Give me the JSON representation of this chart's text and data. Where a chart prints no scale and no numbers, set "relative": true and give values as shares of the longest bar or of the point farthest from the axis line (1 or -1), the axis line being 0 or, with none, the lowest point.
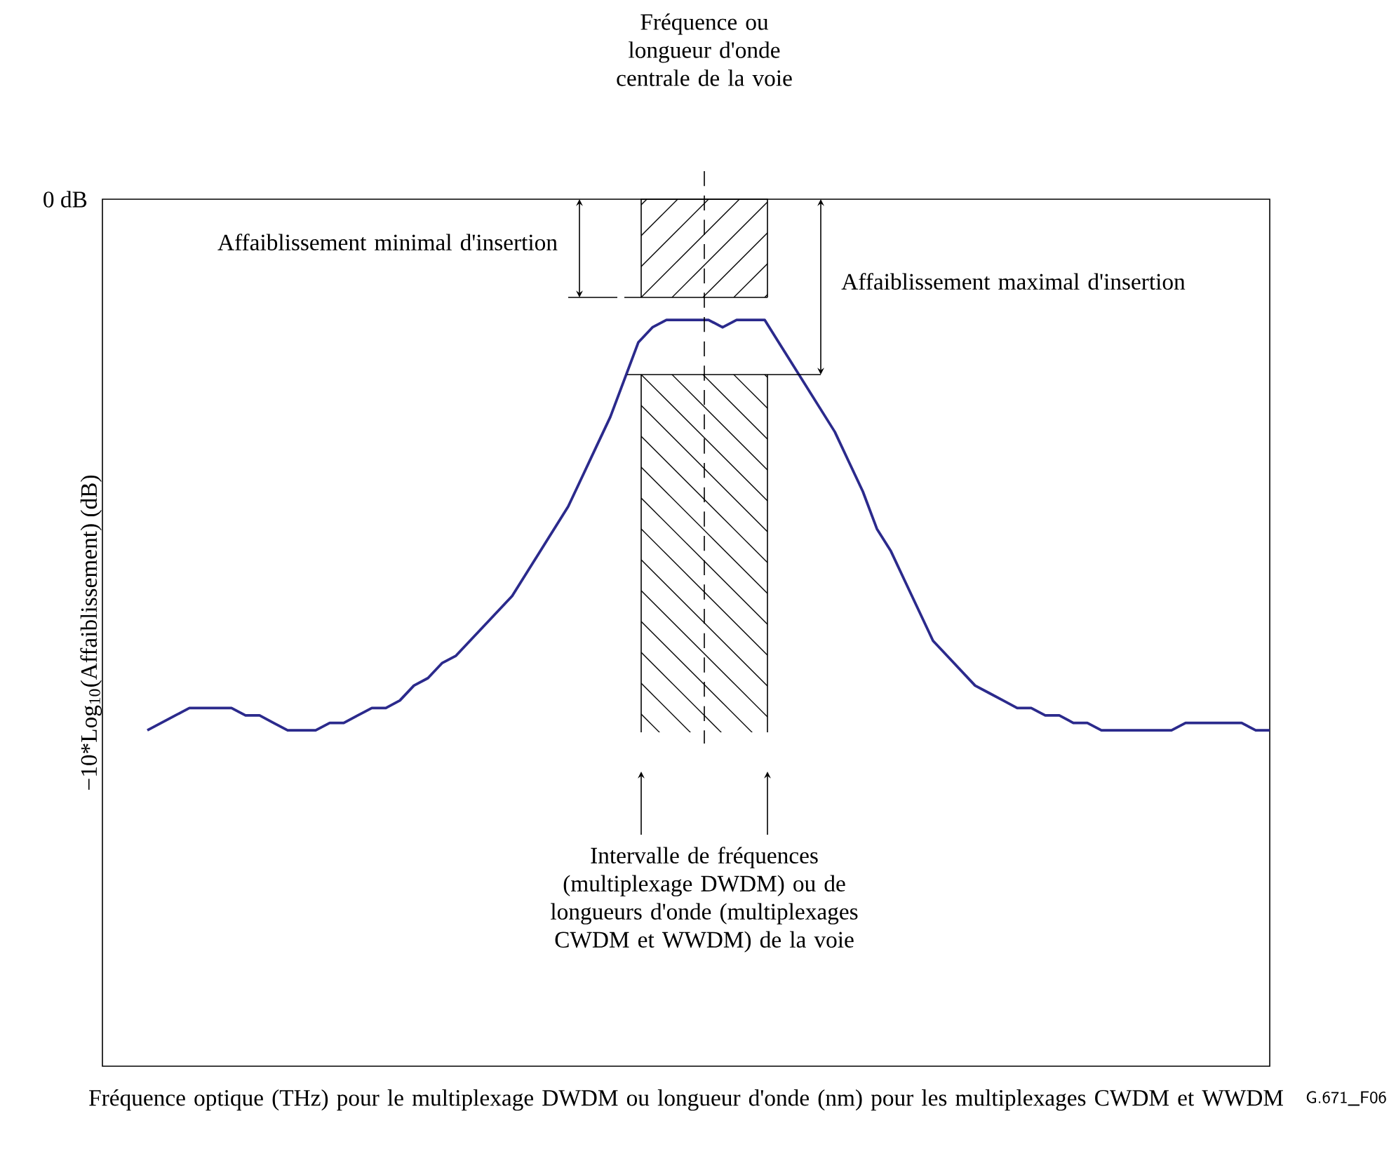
{
  "chart_data": {
    "type": "line",
    "relative": true,
    "categories": [
      null,
      null,
      null,
      null,
      null,
      null,
      null,
      null,
      null,
      null,
      null,
      null,
      null,
      null,
      null,
      null,
      null,
      null,
      null,
      null,
      null,
      null,
      null,
      null,
      null,
      null,
      null,
      null,
      null,
      null,
      null,
      null,
      null,
      null,
      null,
      null,
      null,
      null,
      null,
      null,
      null,
      null,
      null,
      null,
      null,
      null,
      null,
      null,
      null,
      null,
      null,
      null,
      null,
      null,
      null,
      null,
      null,
      null,
      null,
      null,
      null,
      null,
      null,
      null,
      null,
      null,
      null,
      null,
      null,
      null,
      null,
      null,
      null,
      null,
      null,
      null,
      null,
      null,
      null,
      null,
      null
    ],
    "series": [
      {
        "color": "#2b2a8c",
        "values": [
          0.45,
          0.46,
          0.47,
          0.48,
          0.48,
          0.48,
          0.48,
          0.47,
          0.47,
          0.46,
          0.45,
          0.45,
          0.45,
          0.46,
          0.46,
          0.47,
          0.48,
          0.48,
          0.49,
          0.51,
          0.52,
          0.54,
          0.55,
          0.57,
          0.59,
          0.61,
          0.63,
          0.66,
          0.69,
          0.72,
          0.75,
          0.79,
          0.83,
          0.87,
          0.92,
          0.97,
          0.99,
          1.0,
          1.0,
          1.0,
          1.0,
          0.99,
          1.0,
          1.0,
          1.0,
          0.97,
          0.94,
          0.91,
          0.88,
          0.85,
          0.81,
          0.77,
          0.72,
          0.69,
          0.65,
          0.61,
          0.57,
          0.55,
          0.53,
          0.51,
          0.5,
          0.49,
          0.48,
          0.48,
          0.47,
          0.47,
          0.46,
          0.46,
          0.45,
          0.45,
          0.45,
          0.45,
          0.45,
          0.45,
          0.46,
          0.46,
          0.46,
          0.46,
          0.46,
          0.45,
          0.45
        ]
      }
    ],
    "xlabel": "Fréquence optique (THz) pour le multiplexage DWDM ou longueur d'onde (nm) pour les multiplexages CWDM et WWDM",
    "ylabel": "−10*Log$_{10}$(Affaiblissement) (dB)",
    "annotations": [
      "Fréquence ou longueur d'onde centrale de la voie",
      "0 dB",
      "Affaiblissement minimal d'insertion",
      "Affaiblissement maximal d'insertion",
      "Intervalle de fréquences (multiplexage DWDM) ou de longueurs d'onde (multiplexages CWDM et WWDM) de la voie",
      "G.671_F06"
    ]
  }
}
